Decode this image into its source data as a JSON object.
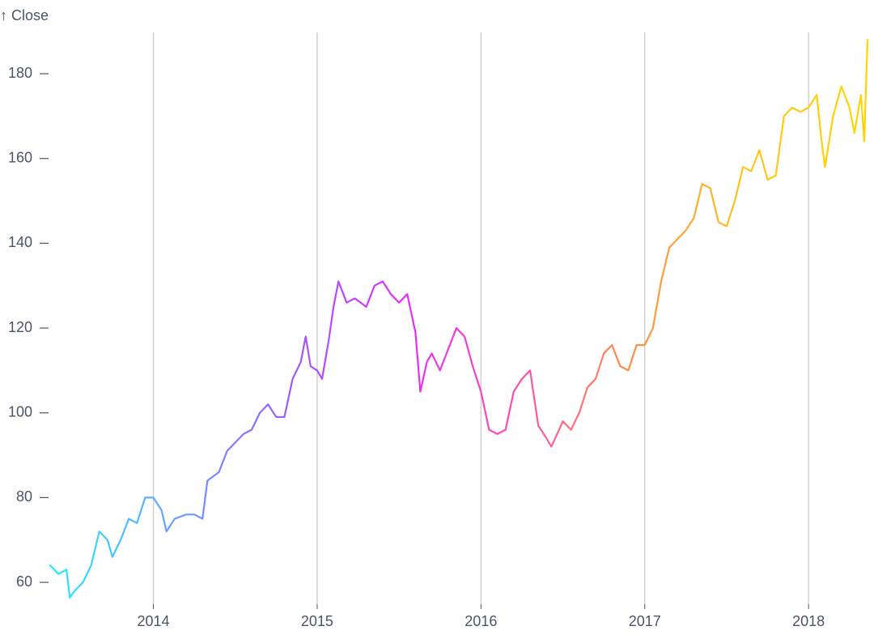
{
  "chart_data": {
    "type": "line",
    "y_label": "↑ Close",
    "x": [
      2013.37,
      2013.42,
      2013.47,
      2013.49,
      2013.52,
      2013.57,
      2013.62,
      2013.67,
      2013.72,
      2013.75,
      2013.8,
      2013.85,
      2013.9,
      2013.95,
      2014.0,
      2014.05,
      2014.08,
      2014.13,
      2014.2,
      2014.25,
      2014.3,
      2014.33,
      2014.4,
      2014.45,
      2014.5,
      2014.55,
      2014.6,
      2014.65,
      2014.7,
      2014.75,
      2014.8,
      2014.85,
      2014.9,
      2014.93,
      2014.96,
      2015.0,
      2015.03,
      2015.07,
      2015.1,
      2015.13,
      2015.18,
      2015.23,
      2015.3,
      2015.35,
      2015.4,
      2015.45,
      2015.5,
      2015.55,
      2015.6,
      2015.63,
      2015.67,
      2015.7,
      2015.75,
      2015.8,
      2015.85,
      2015.9,
      2015.95,
      2016.0,
      2016.05,
      2016.1,
      2016.15,
      2016.2,
      2016.25,
      2016.3,
      2016.35,
      2016.4,
      2016.43,
      2016.5,
      2016.55,
      2016.6,
      2016.65,
      2016.7,
      2016.75,
      2016.8,
      2016.85,
      2016.9,
      2016.95,
      2017.0,
      2017.05,
      2017.1,
      2017.15,
      2017.2,
      2017.25,
      2017.3,
      2017.35,
      2017.4,
      2017.45,
      2017.5,
      2017.55,
      2017.6,
      2017.65,
      2017.7,
      2017.75,
      2017.8,
      2017.85,
      2017.9,
      2017.95,
      2018.0,
      2018.05,
      2018.08,
      2018.1,
      2018.15,
      2018.2,
      2018.25,
      2018.28,
      2018.32,
      2018.34,
      2018.36
    ],
    "values": [
      64,
      62,
      63,
      56.4,
      58,
      60,
      64,
      72,
      70,
      66,
      70,
      75,
      74,
      80,
      80,
      77,
      72,
      75,
      76,
      76,
      75,
      84,
      86,
      91,
      93,
      95,
      96,
      100,
      102,
      99,
      99,
      108,
      112,
      118,
      111,
      110,
      108,
      117,
      125,
      131,
      126,
      127,
      125,
      130,
      131,
      128,
      126,
      128,
      119,
      105,
      112,
      114,
      110,
      115,
      120,
      118,
      111,
      105,
      96,
      95,
      96,
      105,
      108,
      110,
      97,
      94,
      92,
      98,
      96,
      100,
      106,
      108,
      114,
      116,
      111,
      110,
      116,
      116,
      120,
      131,
      139,
      141,
      143,
      146,
      154,
      153,
      145,
      144,
      150,
      158,
      157,
      162,
      155,
      156,
      170,
      172,
      171,
      172,
      175,
      164,
      158,
      170,
      177,
      172,
      166,
      175,
      164,
      188
    ],
    "xlim": [
      2013.37,
      2018.36
    ],
    "xticks": [
      2014,
      2015,
      2016,
      2017,
      2018
    ],
    "ylim": [
      56,
      190
    ],
    "yticks": [
      60,
      80,
      100,
      120,
      140,
      160,
      180
    ],
    "grid": "x",
    "color_scheme": [
      "#22eeff",
      "#66a4ff",
      "#9b5cff",
      "#e22cff",
      "#ff4fa8",
      "#ff8f4a",
      "#ffc61a",
      "#ffd500"
    ]
  }
}
